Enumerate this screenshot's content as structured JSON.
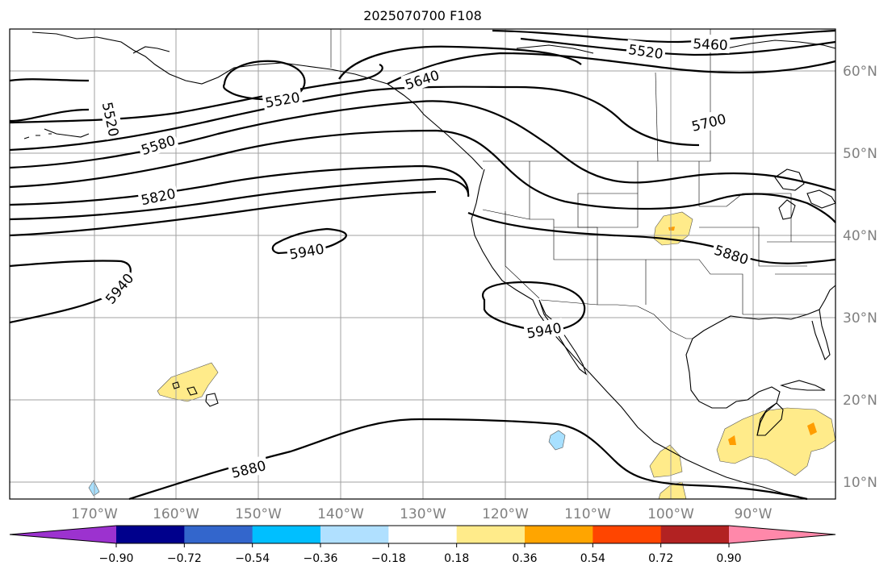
{
  "title": "2025070700 F108",
  "map": {
    "longitude_labels": [
      "170°W",
      "160°W",
      "150°W",
      "140°W",
      "130°W",
      "120°W",
      "110°W",
      "100°W",
      "90°W"
    ],
    "latitude_labels": [
      "60°N",
      "50°N",
      "40°N",
      "30°N",
      "20°N",
      "10°N"
    ],
    "contour_labels": [
      "5460",
      "5520",
      "5640",
      "5520",
      "5520",
      "5700",
      "5580",
      "5820",
      "5940",
      "5940",
      "5880",
      "5940",
      "5880"
    ],
    "colors": {
      "contour": "#000000",
      "grid": "#a0a0a0",
      "positive_light": "#ffeb8a",
      "positive_orange": "#ff9d00",
      "negative_light": "#a8e0ff"
    }
  },
  "colorbar": {
    "tick_labels": [
      "−0.90",
      "−0.72",
      "−0.54",
      "−0.36",
      "−0.18",
      "0.18",
      "0.36",
      "0.54",
      "0.72",
      "0.90"
    ],
    "colors": [
      "#9c32cf",
      "#00008c",
      "#3366cc",
      "#00bfff",
      "#b0e0ff",
      "#ffffff",
      "#ffeb8a",
      "#ffa500",
      "#ff4500",
      "#b22222",
      "#ff88aa"
    ]
  }
}
